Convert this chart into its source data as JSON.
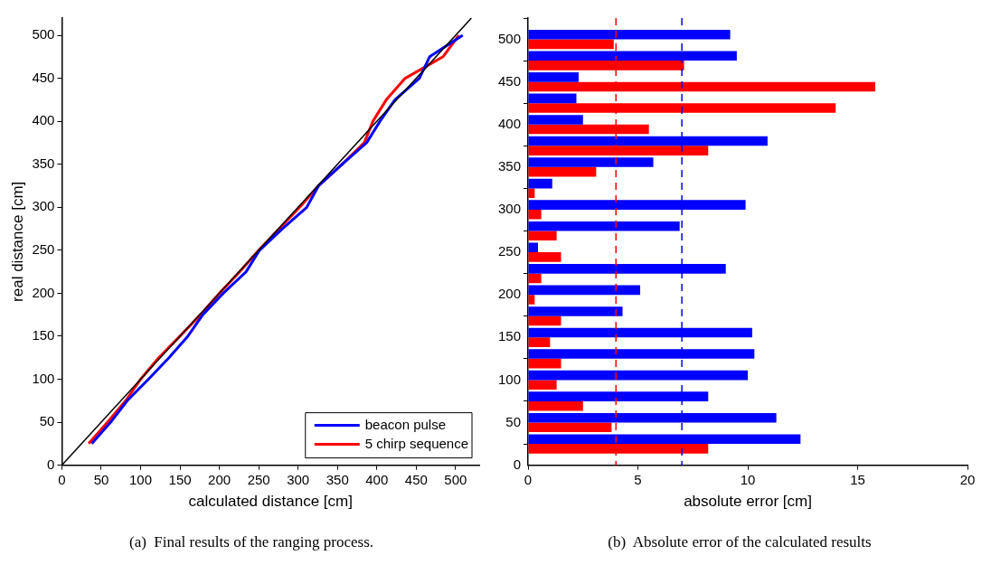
{
  "chart_data": [
    {
      "type": "line",
      "xlabel": "calculated distance [cm]",
      "ylabel": "real distance [cm]",
      "xlim": [
        0,
        530
      ],
      "ylim": [
        0,
        520
      ],
      "xticks": [
        0,
        50,
        100,
        150,
        200,
        250,
        300,
        350,
        400,
        450,
        500
      ],
      "yticks": [
        0,
        50,
        100,
        150,
        200,
        250,
        300,
        350,
        400,
        450,
        500
      ],
      "grid": false,
      "legend": "bottom right",
      "annotations": [
        "(a)  Final results of the ranging process."
      ],
      "series": [
        {
          "type": "line",
          "color": "#000000",
          "x": [
            0,
            520
          ],
          "values": [
            0,
            520
          ]
        },
        {
          "name": "beacon pulse",
          "color": "#0000ff",
          "x": [
            38,
            62,
            83,
            110,
            136,
            160,
            179,
            205,
            234,
            251,
            280,
            311,
            326,
            356,
            387,
            404,
            423,
            454,
            467,
            509
          ],
          "values": [
            25,
            50,
            75,
            100,
            125,
            150,
            175,
            200,
            225,
            250,
            275,
            300,
            325,
            350,
            375,
            400,
            425,
            450,
            475,
            500
          ]
        },
        {
          "name": "5 chirp sequence",
          "color": "#ff0000",
          "x": [
            34,
            58,
            81,
            100,
            123,
            150,
            176,
            200,
            226,
            250,
            276,
            302,
            326,
            356,
            384,
            395,
            412,
            436,
            484,
            504
          ],
          "values": [
            25,
            50,
            75,
            100,
            125,
            150,
            175,
            200,
            225,
            250,
            275,
            300,
            325,
            350,
            375,
            400,
            425,
            450,
            475,
            500
          ]
        }
      ]
    },
    {
      "type": "bar",
      "orientation": "horizontal",
      "xlabel": "absolute error [cm]",
      "xlim": [
        0,
        20
      ],
      "xticks": [
        0,
        5,
        10,
        15,
        20
      ],
      "ylim": [
        0,
        525
      ],
      "yticks": [
        0,
        50,
        100,
        150,
        200,
        250,
        300,
        350,
        400,
        450,
        500
      ],
      "grid": false,
      "legend": false,
      "annotations": [
        "(b)  Absolute error of the calculated results"
      ],
      "x": [
        25,
        50,
        75,
        100,
        125,
        150,
        175,
        200,
        225,
        250,
        275,
        300,
        325,
        350,
        375,
        400,
        425,
        450,
        475,
        500
      ],
      "ref_lines": [
        {
          "axis": "x",
          "value": 4,
          "color": "#ff0000",
          "line_style": "dashed"
        },
        {
          "axis": "x",
          "value": 7,
          "color": "#0000ff",
          "line_style": "dashed"
        }
      ],
      "series": [
        {
          "color": "#0000ff",
          "values": [
            12.4,
            11.3,
            8.2,
            10.0,
            10.3,
            10.2,
            4.3,
            5.1,
            9.0,
            0.45,
            6.9,
            9.9,
            1.1,
            5.7,
            10.9,
            2.5,
            2.2,
            2.3,
            9.5,
            9.2
          ]
        },
        {
          "color": "#ff0000",
          "values": [
            8.2,
            3.8,
            2.5,
            1.3,
            1.5,
            1.0,
            1.5,
            0.3,
            0.6,
            1.5,
            1.3,
            0.6,
            0.3,
            3.1,
            8.2,
            5.5,
            14.0,
            15.8,
            7.1,
            3.9
          ]
        }
      ]
    }
  ]
}
